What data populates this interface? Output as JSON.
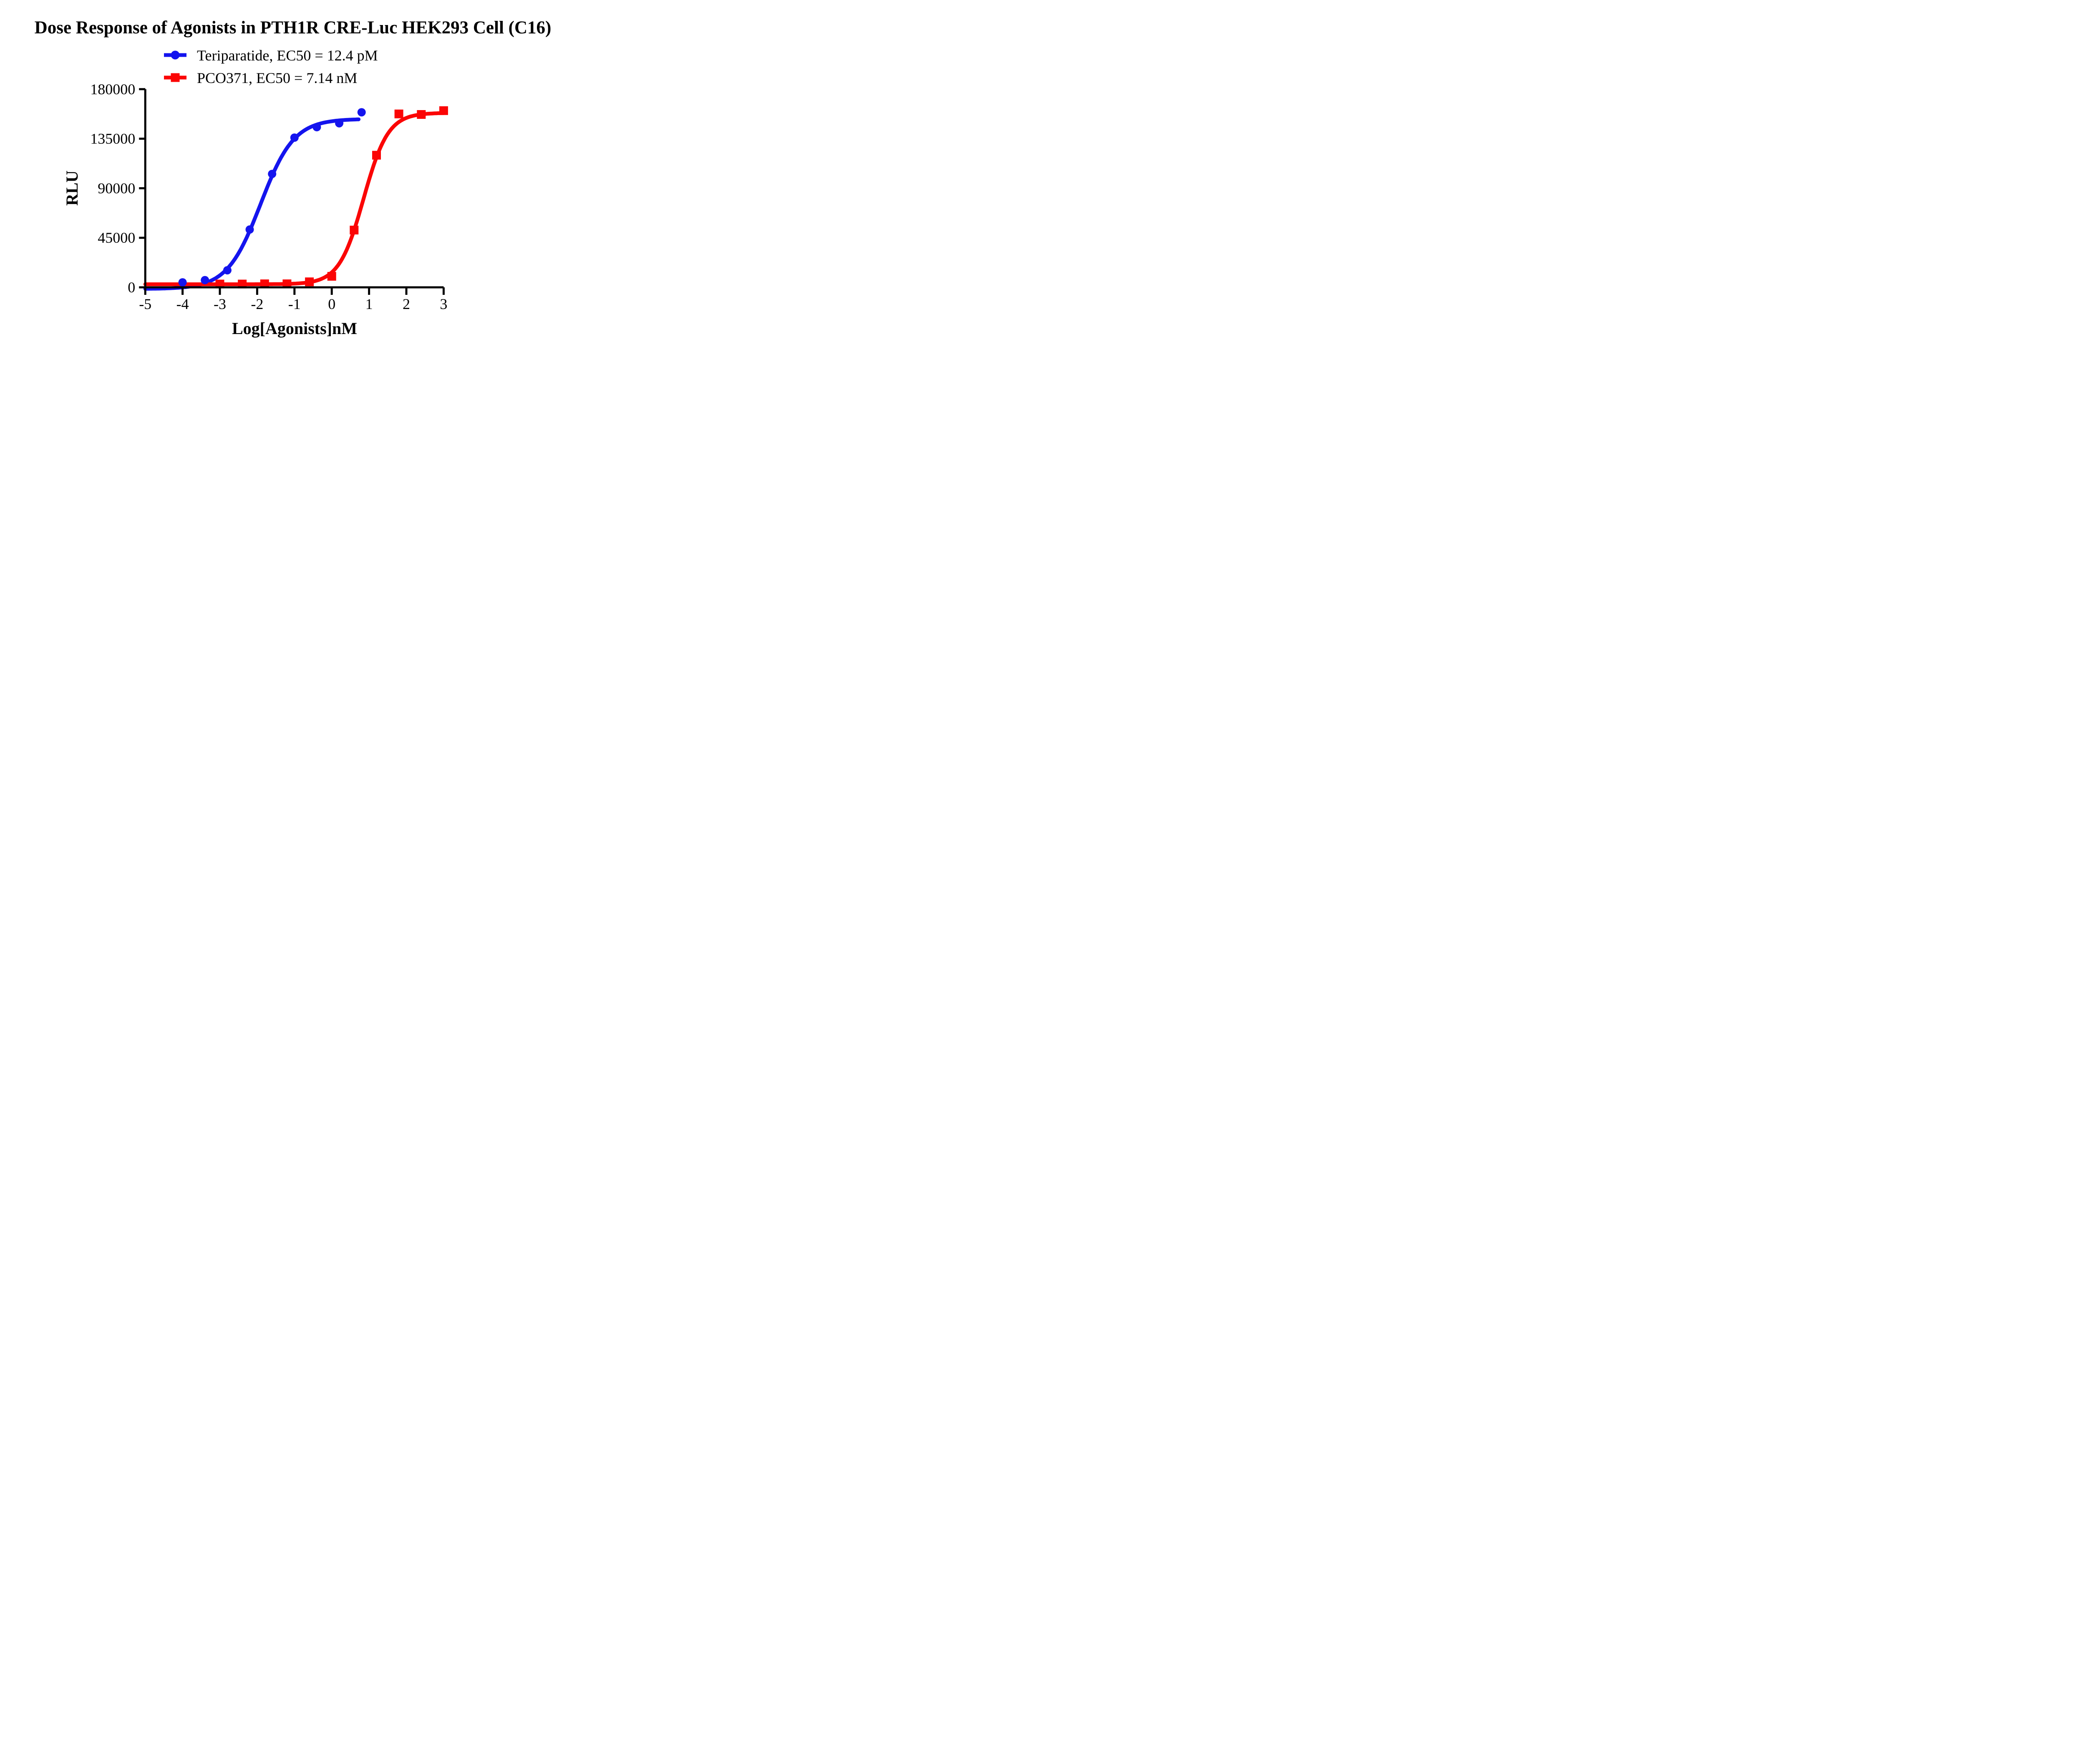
{
  "title": "Dose Response of Agonists in PTH1R CRE-Luc HEK293 Cell (C16)",
  "chart_data": {
    "type": "line",
    "title": "Dose Response of Agonists in PTH1R CRE-Luc HEK293 Cell (C16)",
    "xlabel": "Log[Agonists]nM",
    "ylabel": "RLU",
    "xlim": [
      -5,
      3
    ],
    "ylim": [
      0,
      180000
    ],
    "x_ticks": [
      -5,
      -4,
      -3,
      -2,
      -1,
      0,
      1,
      2,
      3
    ],
    "y_ticks": [
      0,
      45000,
      90000,
      135000,
      180000
    ],
    "grid": false,
    "legend_position": "top-left",
    "series": [
      {
        "name": "Teriparatide",
        "legend_label": "Teriparatide, EC50 = 12.4 pM",
        "ec50": "12.4 pM",
        "color": "#1414EE",
        "marker": "circle",
        "points": {
          "x": [
            -4.0,
            -3.4,
            -2.8,
            -2.2,
            -1.6,
            -1.0,
            -0.4,
            0.2,
            0.8
          ],
          "y": [
            4500,
            6500,
            15500,
            52500,
            103000,
            136000,
            145500,
            149000,
            159000
          ]
        },
        "fit_curve": {
          "model": "4PL-logistic",
          "bottom": -1500,
          "top": 153000,
          "logEC50": -1.907,
          "hill": 0.97,
          "x_start": -5,
          "x_end": 0.75
        }
      },
      {
        "name": "PCO371",
        "legend_label": "PCO371, EC50 = 7.14 nM",
        "ec50": "7.14 nM",
        "color": "#FB0505",
        "marker": "square",
        "points": {
          "x": [
            -3.0,
            -2.4,
            -1.8,
            -1.2,
            -0.6,
            0.0,
            0.6,
            1.2,
            1.8,
            2.4,
            3.0
          ],
          "y": [
            3000,
            3000,
            3200,
            3200,
            5000,
            10000,
            52000,
            120000,
            157500,
            157000,
            160500
          ]
        },
        "fit_curve": {
          "model": "4PL-logistic",
          "bottom": 2800,
          "top": 158500,
          "logEC50": 0.854,
          "hill": 1.32,
          "x_start": -5,
          "x_end": 3.0
        }
      }
    ]
  }
}
